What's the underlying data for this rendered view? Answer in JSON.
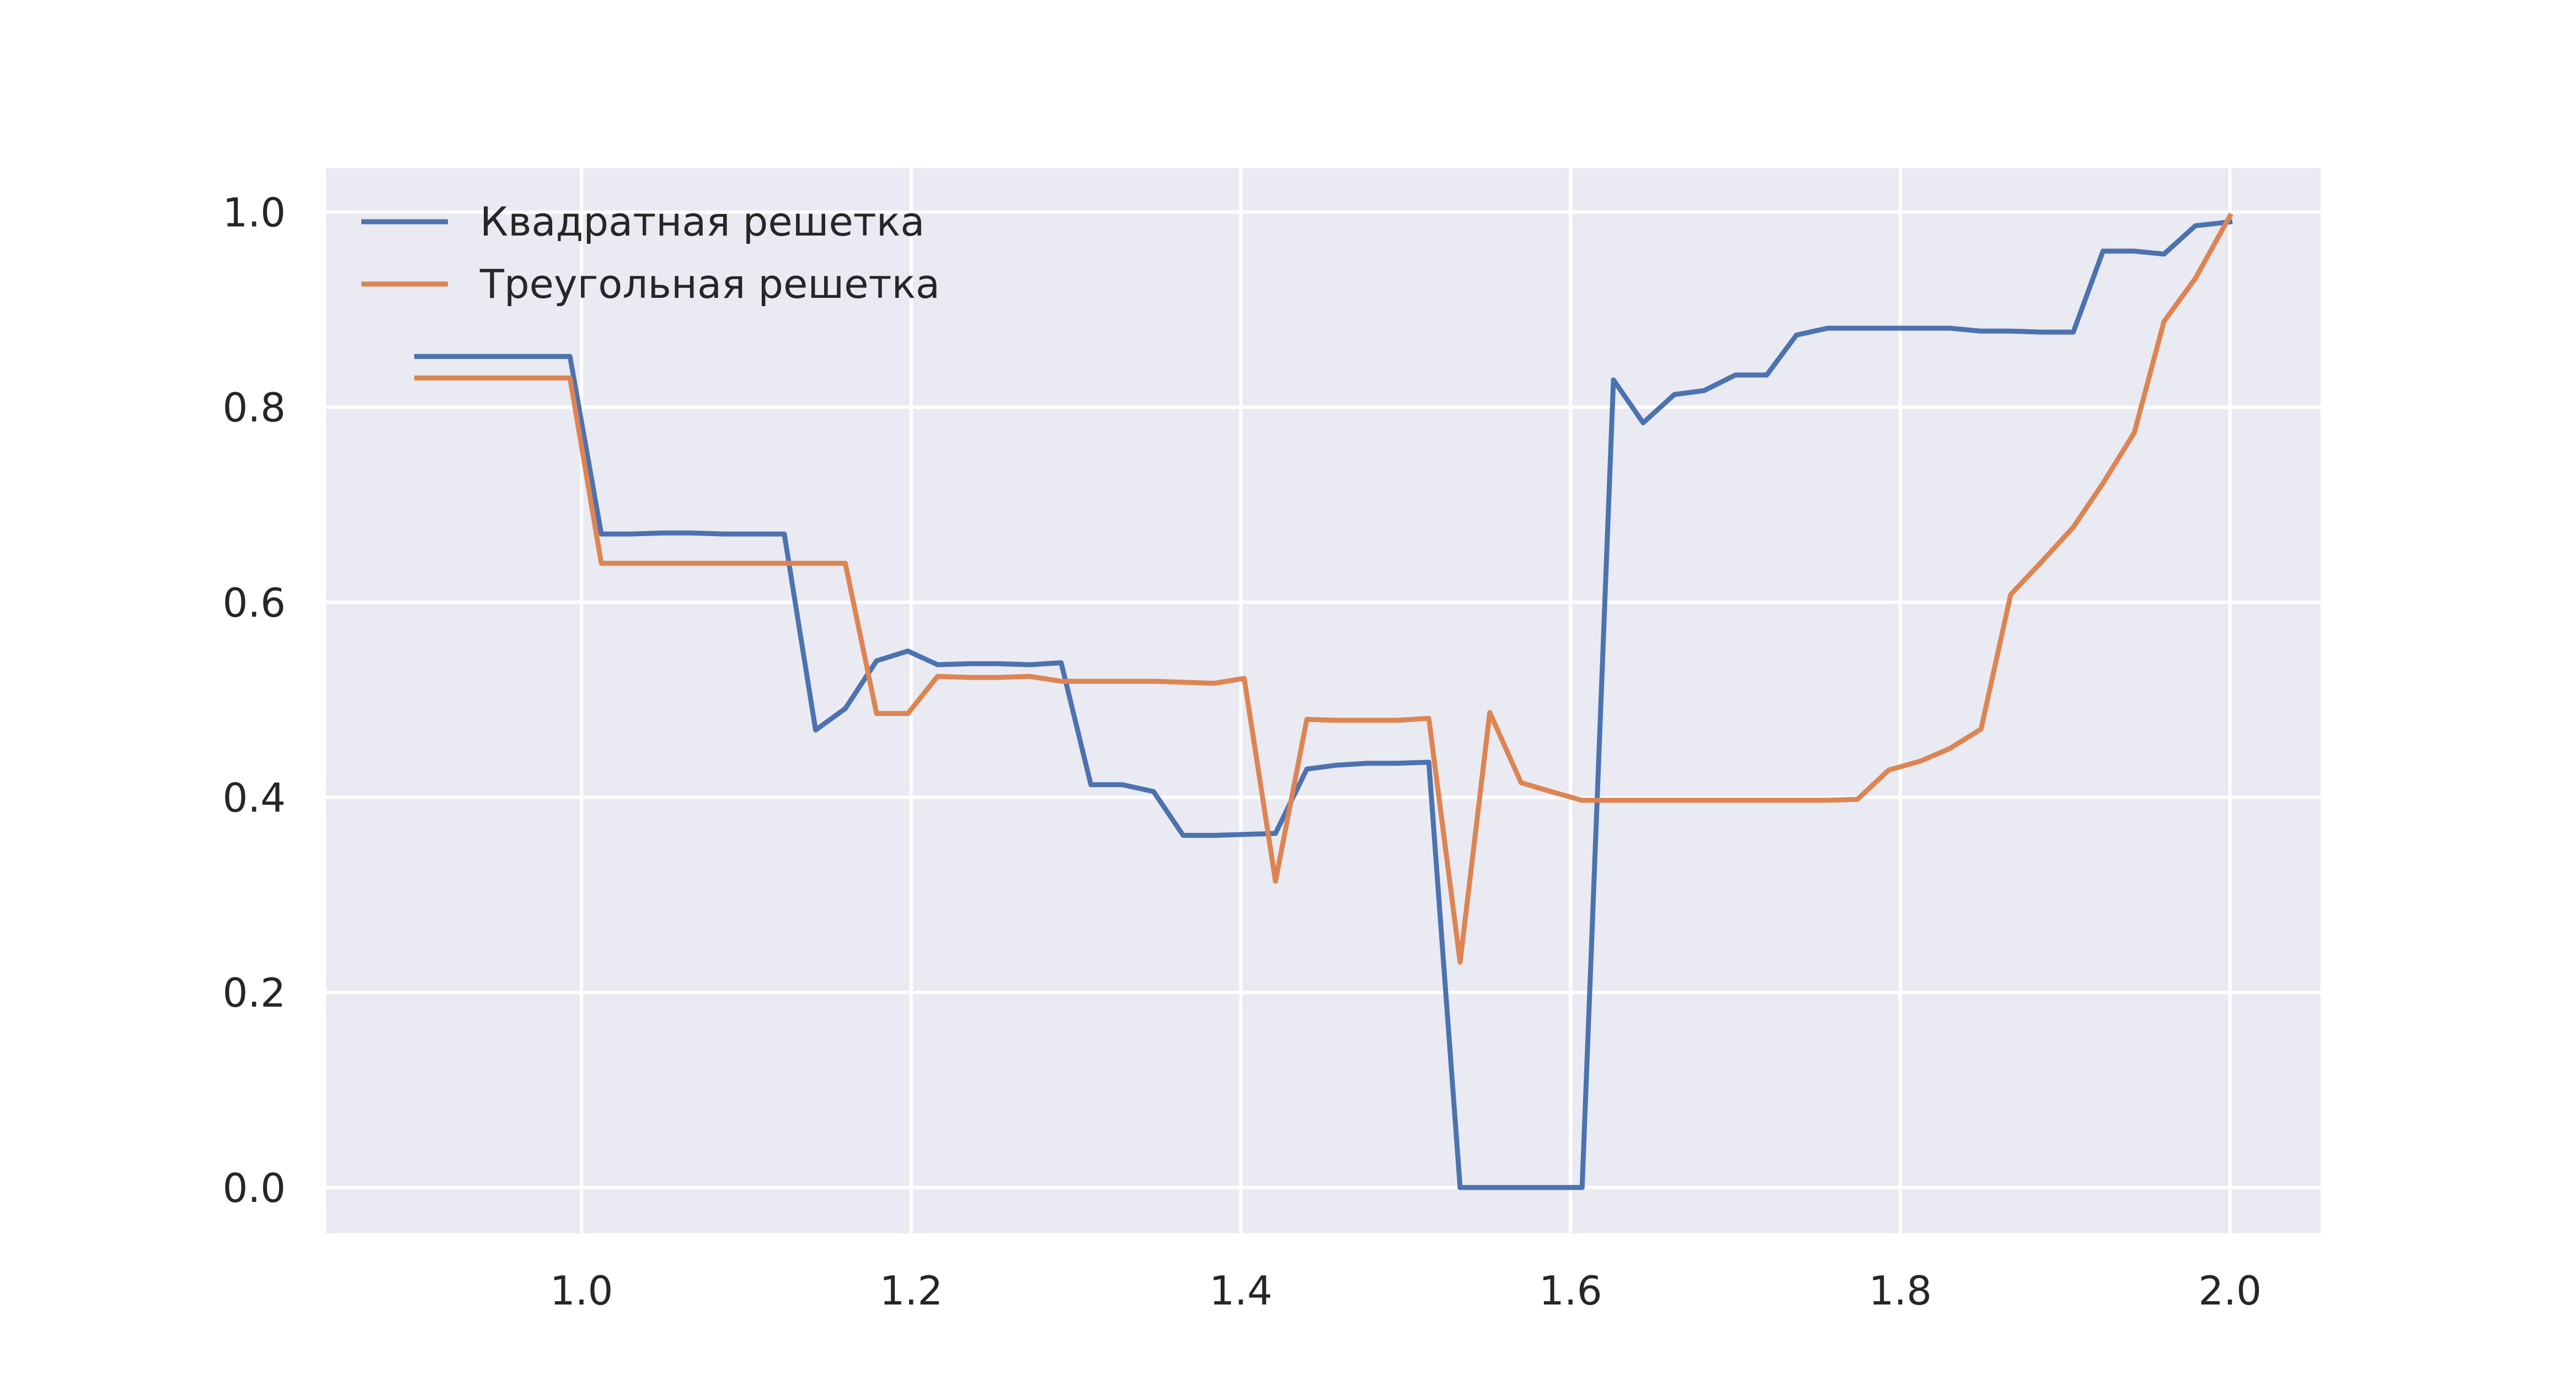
{
  "chart_data": {
    "type": "line",
    "title": "",
    "xlabel": "",
    "ylabel": "",
    "xlim": [
      0.845,
      2.055
    ],
    "ylim": [
      -0.047,
      1.045
    ],
    "x_ticks": [
      1.0,
      1.2,
      1.4,
      1.6,
      1.8,
      2.0
    ],
    "x_tick_labels": [
      "1.0",
      "1.2",
      "1.4",
      "1.6",
      "1.8",
      "2.0"
    ],
    "y_ticks": [
      0.0,
      0.2,
      0.4,
      0.6,
      0.8,
      1.0
    ],
    "y_tick_labels": [
      "0.0",
      "0.2",
      "0.4",
      "0.6",
      "0.8",
      "1.0"
    ],
    "grid": true,
    "legend_position": "upper left",
    "background_color": "#eaeaf2",
    "grid_color": "#ffffff",
    "series": [
      {
        "name": "Квадратная решетка",
        "color": "#4c72b0",
        "x": [
          0.9,
          0.919,
          0.937,
          0.956,
          0.974,
          0.993,
          1.012,
          1.03,
          1.049,
          1.067,
          1.086,
          1.105,
          1.123,
          1.142,
          1.16,
          1.179,
          1.198,
          1.216,
          1.235,
          1.253,
          1.272,
          1.291,
          1.309,
          1.328,
          1.347,
          1.365,
          1.384,
          1.402,
          1.421,
          1.44,
          1.458,
          1.477,
          1.495,
          1.514,
          1.533,
          1.551,
          1.57,
          1.588,
          1.607,
          1.626,
          1.644,
          1.663,
          1.681,
          1.7,
          1.719,
          1.737,
          1.756,
          1.774,
          1.793,
          1.812,
          1.83,
          1.849,
          1.867,
          1.886,
          1.905,
          1.923,
          1.942,
          1.96,
          1.979,
          2.0
        ],
        "y": [
          0.852,
          0.852,
          0.852,
          0.852,
          0.852,
          0.852,
          0.67,
          0.67,
          0.671,
          0.671,
          0.67,
          0.67,
          0.67,
          0.469,
          0.491,
          0.54,
          0.55,
          0.536,
          0.537,
          0.537,
          0.536,
          0.538,
          0.413,
          0.413,
          0.406,
          0.361,
          0.361,
          0.362,
          0.363,
          0.429,
          0.433,
          0.435,
          0.435,
          0.436,
          0.0,
          0.0,
          0.0,
          0.0,
          0.0,
          0.828,
          0.784,
          0.813,
          0.817,
          0.833,
          0.833,
          0.874,
          0.881,
          0.881,
          0.881,
          0.881,
          0.881,
          0.878,
          0.878,
          0.877,
          0.877,
          0.96,
          0.96,
          0.957,
          0.986,
          0.99
        ]
      },
      {
        "name": "Треугольная решетка",
        "color": "#dd8452",
        "x": [
          0.9,
          0.919,
          0.937,
          0.956,
          0.974,
          0.993,
          1.012,
          1.03,
          1.049,
          1.067,
          1.086,
          1.105,
          1.123,
          1.142,
          1.16,
          1.179,
          1.198,
          1.216,
          1.235,
          1.253,
          1.272,
          1.291,
          1.309,
          1.328,
          1.347,
          1.365,
          1.384,
          1.402,
          1.421,
          1.44,
          1.458,
          1.477,
          1.495,
          1.514,
          1.533,
          1.551,
          1.57,
          1.588,
          1.607,
          1.626,
          1.644,
          1.663,
          1.681,
          1.7,
          1.719,
          1.737,
          1.756,
          1.774,
          1.793,
          1.812,
          1.83,
          1.849,
          1.867,
          1.886,
          1.905,
          1.923,
          1.942,
          1.96,
          1.979,
          2.0
        ],
        "y": [
          0.83,
          0.83,
          0.83,
          0.83,
          0.83,
          0.83,
          0.64,
          0.64,
          0.64,
          0.64,
          0.64,
          0.64,
          0.64,
          0.64,
          0.64,
          0.486,
          0.486,
          0.524,
          0.523,
          0.523,
          0.524,
          0.519,
          0.519,
          0.519,
          0.519,
          0.518,
          0.517,
          0.522,
          0.314,
          0.48,
          0.479,
          0.479,
          0.479,
          0.481,
          0.231,
          0.487,
          0.415,
          0.406,
          0.397,
          0.397,
          0.397,
          0.397,
          0.397,
          0.397,
          0.397,
          0.397,
          0.397,
          0.398,
          0.428,
          0.437,
          0.45,
          0.47,
          0.608,
          0.642,
          0.677,
          0.722,
          0.774,
          0.888,
          0.932,
          0.996
        ]
      }
    ]
  }
}
